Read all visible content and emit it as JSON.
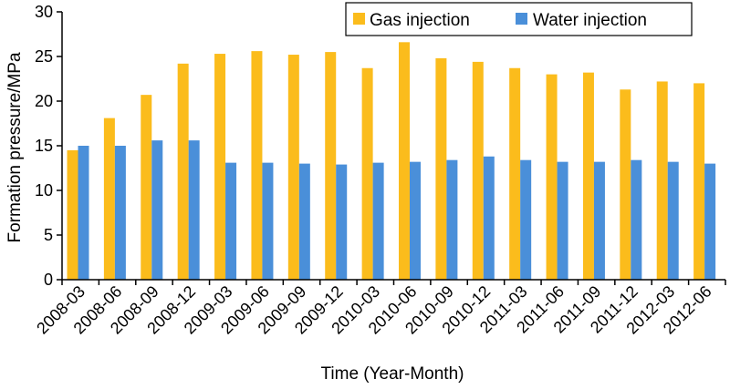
{
  "chart_data": {
    "type": "bar",
    "title": "",
    "xlabel": "Time (Year-Month)",
    "ylabel": "Formation pressure/MPa",
    "ylim": [
      0,
      30
    ],
    "yticks": [
      0,
      5,
      10,
      15,
      20,
      25,
      30
    ],
    "grid": false,
    "legend_position": "top-right",
    "categories": [
      "2008-03",
      "2008-06",
      "2008-09",
      "2008-12",
      "2009-03",
      "2009-06",
      "2009-09",
      "2009-12",
      "2010-03",
      "2010-06",
      "2010-09",
      "2010-12",
      "2011-03",
      "2011-06",
      "2011-09",
      "2011-12",
      "2012-03",
      "2012-06"
    ],
    "series": [
      {
        "name": "Gas injection",
        "color": "#FBBC1C",
        "values": [
          14.5,
          18.1,
          20.7,
          24.2,
          25.3,
          25.6,
          25.2,
          25.5,
          23.7,
          26.6,
          24.8,
          24.4,
          23.7,
          23.0,
          23.2,
          21.3,
          22.2,
          22.0
        ]
      },
      {
        "name": "Water injection",
        "color": "#4A8FD9",
        "values": [
          15.0,
          15.0,
          15.6,
          15.6,
          13.1,
          13.1,
          13.0,
          12.9,
          13.1,
          13.2,
          13.4,
          13.8,
          13.4,
          13.2,
          13.2,
          13.4,
          13.2,
          13.0
        ]
      }
    ]
  }
}
